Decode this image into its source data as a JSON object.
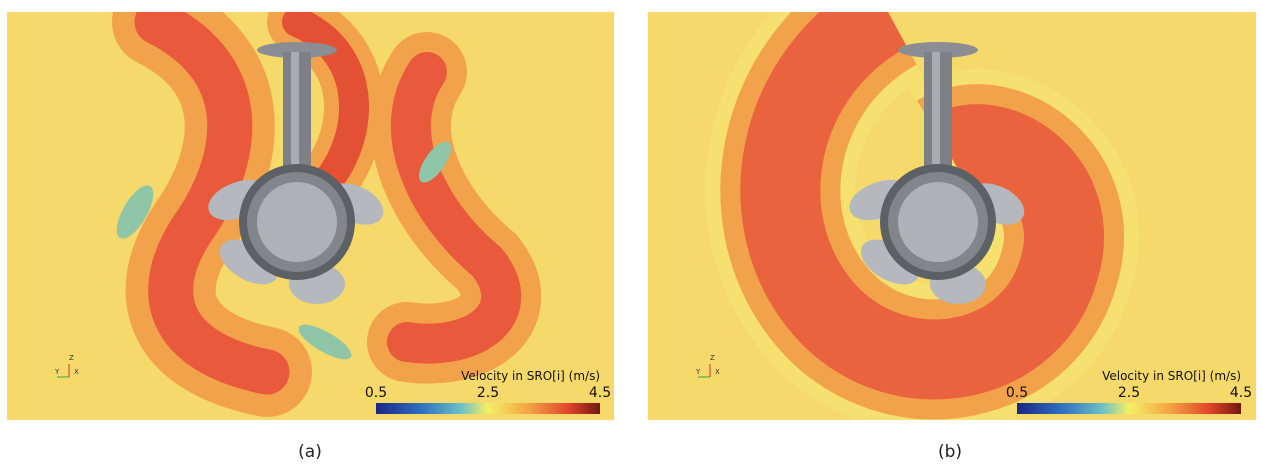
{
  "panels": [
    {
      "colorbar": {
        "title": "Velocity in SRO[i] (m/s)",
        "ticks": [
          "0.5",
          "2.5",
          "4.5"
        ]
      },
      "axes": [
        "Y",
        "Z",
        "X"
      ],
      "caption": "(a)"
    },
    {
      "colorbar": {
        "title": "Velocity in SRO[i] (m/s)",
        "ticks": [
          "0.5",
          "2.5",
          "4.5"
        ]
      },
      "axes": [
        "Y",
        "Z",
        "X"
      ],
      "caption": "(b)"
    }
  ]
}
